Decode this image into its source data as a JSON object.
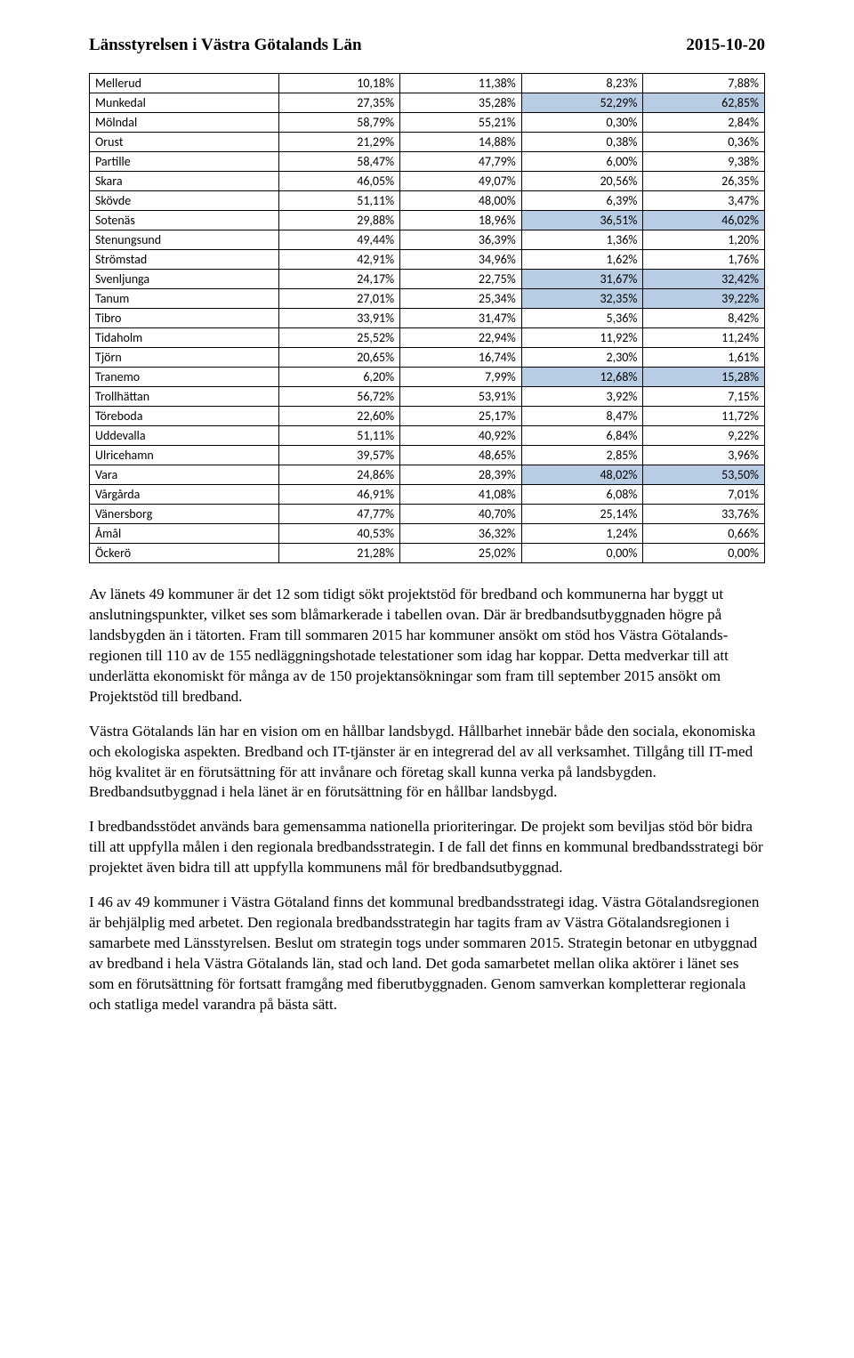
{
  "header": {
    "left": "Länsstyrelsen i Västra Götalands Län",
    "right": "2015-10-20"
  },
  "table": {
    "highlight_color": "#b8cce4",
    "rows": [
      {
        "name": "Mellerud",
        "c1": "10,18%",
        "c2": "11,38%",
        "c3": "8,23%",
        "c4": "7,88%",
        "h3": false,
        "h4": false
      },
      {
        "name": "Munkedal",
        "c1": "27,35%",
        "c2": "35,28%",
        "c3": "52,29%",
        "c4": "62,85%",
        "h3": true,
        "h4": true
      },
      {
        "name": "Mölndal",
        "c1": "58,79%",
        "c2": "55,21%",
        "c3": "0,30%",
        "c4": "2,84%",
        "h3": false,
        "h4": false
      },
      {
        "name": "Orust",
        "c1": "21,29%",
        "c2": "14,88%",
        "c3": "0,38%",
        "c4": "0,36%",
        "h3": false,
        "h4": false
      },
      {
        "name": "Partille",
        "c1": "58,47%",
        "c2": "47,79%",
        "c3": "6,00%",
        "c4": "9,38%",
        "h3": false,
        "h4": false
      },
      {
        "name": "Skara",
        "c1": "46,05%",
        "c2": "49,07%",
        "c3": "20,56%",
        "c4": "26,35%",
        "h3": false,
        "h4": false
      },
      {
        "name": "Skövde",
        "c1": "51,11%",
        "c2": "48,00%",
        "c3": "6,39%",
        "c4": "3,47%",
        "h3": false,
        "h4": false
      },
      {
        "name": "Sotenäs",
        "c1": "29,88%",
        "c2": "18,96%",
        "c3": "36,51%",
        "c4": "46,02%",
        "h3": true,
        "h4": true
      },
      {
        "name": "Stenungsund",
        "c1": "49,44%",
        "c2": "36,39%",
        "c3": "1,36%",
        "c4": "1,20%",
        "h3": false,
        "h4": false
      },
      {
        "name": "Strömstad",
        "c1": "42,91%",
        "c2": "34,96%",
        "c3": "1,62%",
        "c4": "1,76%",
        "h3": false,
        "h4": false
      },
      {
        "name": "Svenljunga",
        "c1": "24,17%",
        "c2": "22,75%",
        "c3": "31,67%",
        "c4": "32,42%",
        "h3": true,
        "h4": true
      },
      {
        "name": "Tanum",
        "c1": "27,01%",
        "c2": "25,34%",
        "c3": "32,35%",
        "c4": "39,22%",
        "h3": true,
        "h4": true
      },
      {
        "name": "Tibro",
        "c1": "33,91%",
        "c2": "31,47%",
        "c3": "5,36%",
        "c4": "8,42%",
        "h3": false,
        "h4": false
      },
      {
        "name": "Tidaholm",
        "c1": "25,52%",
        "c2": "22,94%",
        "c3": "11,92%",
        "c4": "11,24%",
        "h3": false,
        "h4": false
      },
      {
        "name": "Tjörn",
        "c1": "20,65%",
        "c2": "16,74%",
        "c3": "2,30%",
        "c4": "1,61%",
        "h3": false,
        "h4": false
      },
      {
        "name": "Tranemo",
        "c1": "6,20%",
        "c2": "7,99%",
        "c3": "12,68%",
        "c4": "15,28%",
        "h3": true,
        "h4": true
      },
      {
        "name": "Trollhättan",
        "c1": "56,72%",
        "c2": "53,91%",
        "c3": "3,92%",
        "c4": "7,15%",
        "h3": false,
        "h4": false
      },
      {
        "name": "Töreboda",
        "c1": "22,60%",
        "c2": "25,17%",
        "c3": "8,47%",
        "c4": "11,72%",
        "h3": false,
        "h4": false
      },
      {
        "name": "Uddevalla",
        "c1": "51,11%",
        "c2": "40,92%",
        "c3": "6,84%",
        "c4": "9,22%",
        "h3": false,
        "h4": false
      },
      {
        "name": "Ulricehamn",
        "c1": "39,57%",
        "c2": "48,65%",
        "c3": "2,85%",
        "c4": "3,96%",
        "h3": false,
        "h4": false
      },
      {
        "name": "Vara",
        "c1": "24,86%",
        "c2": "28,39%",
        "c3": "48,02%",
        "c4": "53,50%",
        "h3": true,
        "h4": true
      },
      {
        "name": "Vårgårda",
        "c1": "46,91%",
        "c2": "41,08%",
        "c3": "6,08%",
        "c4": "7,01%",
        "h3": false,
        "h4": false
      },
      {
        "name": "Vänersborg",
        "c1": "47,77%",
        "c2": "40,70%",
        "c3": "25,14%",
        "c4": "33,76%",
        "h3": false,
        "h4": false
      },
      {
        "name": "Åmål",
        "c1": "40,53%",
        "c2": "36,32%",
        "c3": "1,24%",
        "c4": "0,66%",
        "h3": false,
        "h4": false
      },
      {
        "name": "Öckerö",
        "c1": "21,28%",
        "c2": "25,02%",
        "c3": "0,00%",
        "c4": "0,00%",
        "h3": false,
        "h4": false
      }
    ]
  },
  "paragraphs": [
    "Av länets 49 kommuner är det 12 som tidigt sökt projektstöd för bredband och kommunerna har byggt ut anslutningspunkter, vilket ses som blåmarkerade i tabellen ovan. Där är bredbandsutbyggnaden högre på landsbygden än i tätorten. Fram till sommaren 2015 har kommuner ansökt om stöd hos Västra Götalands-regionen till 110 av de 155 nedläggningshotade telestationer som idag har koppar. Detta medverkar till att underlätta ekonomiskt för många av de 150 projektansökningar som fram till september 2015 ansökt om Projektstöd till bredband.",
    "Västra Götalands län har en vision om en hållbar landsbygd. Hållbarhet innebär både den sociala, ekonomiska och ekologiska aspekten. Bredband och IT-tjänster är en integrerad del av all verksamhet. Tillgång till IT-med hög kvalitet är en förutsättning för att invånare och företag skall kunna verka på landsbygden. Bredbandsutbyggnad i hela länet är en förutsättning för en hållbar landsbygd.",
    "I bredbandsstödet används bara gemensamma nationella prioriteringar. De projekt som beviljas stöd bör bidra till att uppfylla målen i den regionala bredbandsstrategin. I de fall det finns en kommunal bredbandsstrategi bör projektet även bidra till att uppfylla kommunens mål för bredbandsutbyggnad.",
    "I 46 av 49 kommuner i Västra Götaland finns det kommunal bredbandsstrategi idag. Västra Götalandsregionen är behjälplig med arbetet. Den regionala bredbandsstrategin har tagits fram av Västra Götalandsregionen i samarbete med Länsstyrelsen. Beslut om strategin togs under sommaren 2015. Strategin betonar en utbyggnad av bredband i hela Västra Götalands län, stad och land. Det goda samarbetet mellan olika aktörer i länet ses som en förutsättning för fortsatt framgång med fiberutbyggnaden. Genom samverkan kompletterar regionala och statliga medel varandra på bästa sätt."
  ]
}
